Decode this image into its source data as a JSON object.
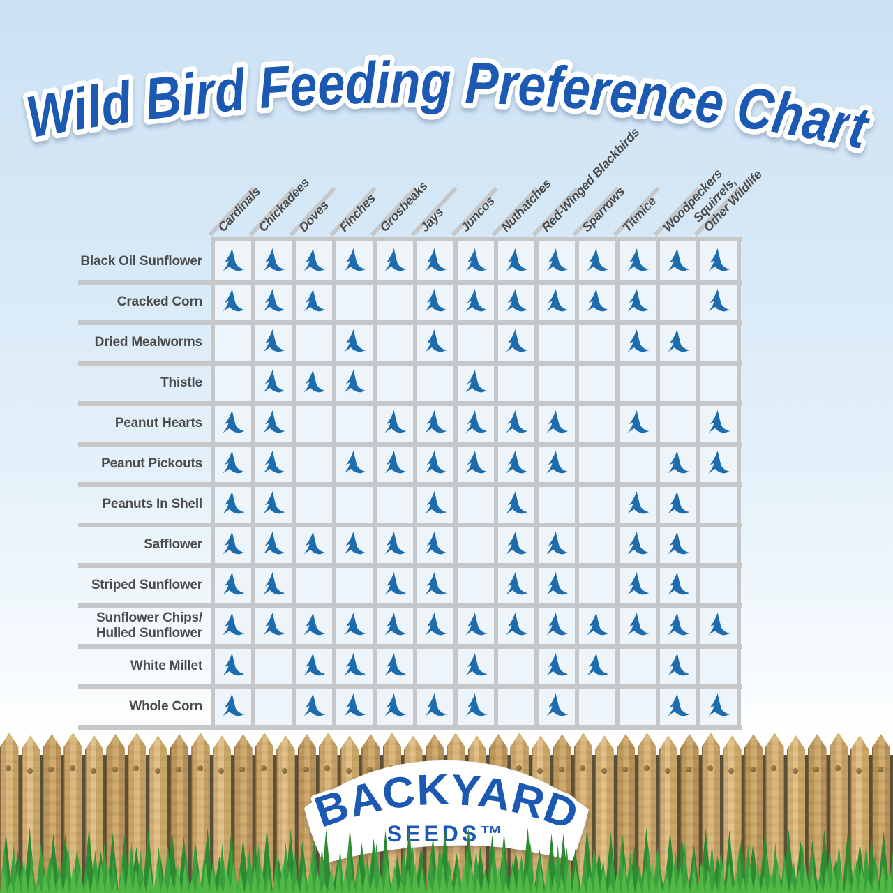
{
  "title": "Wild Bird Feeding Preference Chart",
  "chart_data": {
    "type": "table",
    "title": "Wild Bird Feeding Preference Chart",
    "legend": "bird icon = food preferred by that bird",
    "columns": [
      "Cardinals",
      "Chickadees",
      "Doves",
      "Finches",
      "Grosbeaks",
      "Jays",
      "Juncos",
      "Nuthatches",
      "Red-Winged Blackbirds",
      "Sparrows",
      "Titmice",
      "Woodpeckers",
      "Squirrels,\nOther Wildlife"
    ],
    "rows": [
      "Black Oil Sunflower",
      "Cracked Corn",
      "Dried Mealworms",
      "Thistle",
      "Peanut Hearts",
      "Peanut Pickouts",
      "Peanuts In Shell",
      "Safflower",
      "Striped Sunflower",
      "Sunflower Chips/\nHulled Sunflower",
      "White Millet",
      "Whole Corn"
    ],
    "matrix": [
      [
        1,
        1,
        1,
        1,
        1,
        1,
        1,
        1,
        1,
        1,
        1,
        1,
        1
      ],
      [
        1,
        1,
        1,
        0,
        0,
        1,
        1,
        1,
        1,
        1,
        1,
        0,
        1
      ],
      [
        0,
        1,
        0,
        1,
        0,
        1,
        0,
        1,
        0,
        0,
        1,
        1,
        0
      ],
      [
        0,
        1,
        1,
        1,
        0,
        0,
        1,
        0,
        0,
        0,
        0,
        0,
        0
      ],
      [
        1,
        1,
        0,
        0,
        1,
        1,
        1,
        1,
        1,
        0,
        1,
        0,
        1
      ],
      [
        1,
        1,
        0,
        1,
        1,
        1,
        1,
        1,
        1,
        0,
        0,
        1,
        1
      ],
      [
        1,
        1,
        0,
        0,
        0,
        1,
        0,
        1,
        0,
        0,
        1,
        1,
        0
      ],
      [
        1,
        1,
        1,
        1,
        1,
        1,
        0,
        1,
        1,
        0,
        1,
        1,
        0
      ],
      [
        1,
        1,
        0,
        0,
        1,
        1,
        0,
        1,
        1,
        0,
        1,
        1,
        0
      ],
      [
        1,
        1,
        1,
        1,
        1,
        1,
        1,
        1,
        1,
        1,
        1,
        1,
        1
      ],
      [
        1,
        0,
        1,
        1,
        1,
        0,
        1,
        0,
        1,
        1,
        0,
        1,
        0
      ],
      [
        1,
        0,
        1,
        1,
        1,
        1,
        1,
        0,
        1,
        0,
        0,
        1,
        1
      ]
    ]
  },
  "logo": {
    "line1": "BACKYARD",
    "line2": "SEEDS™"
  },
  "colors": {
    "title_blue": "#1b59b3",
    "bird_blue": "#1d6cae",
    "grid_gray": "#c6c7c9",
    "cell_bg": "#edf4fa",
    "label_gray": "#4b4b4b",
    "wood_tan": "#c9a368",
    "grass_green": "#38a03c"
  }
}
